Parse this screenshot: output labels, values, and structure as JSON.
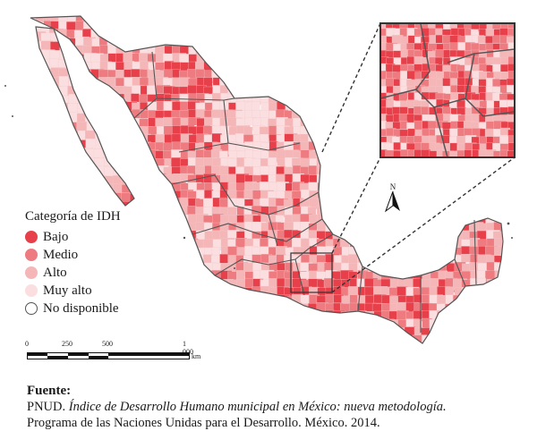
{
  "legend": {
    "title": "Categoría de IDH",
    "items": [
      {
        "label": "Bajo",
        "color": "#e8404a"
      },
      {
        "label": "Medio",
        "color": "#ee7b80"
      },
      {
        "label": "Alto",
        "color": "#f5b6b8"
      },
      {
        "label": "Muy alto",
        "color": "#fbdfe0"
      },
      {
        "label": "No disponible",
        "color": "#ffffff"
      }
    ]
  },
  "scale": {
    "ticks": [
      "0",
      "250",
      "500",
      "1 000"
    ],
    "unit": "km"
  },
  "north": {
    "label": "N"
  },
  "source": {
    "title": "Fuente:",
    "line1_prefix": "PNUD. ",
    "line1_italic": "Índice de Desarrollo Humano municipal en México: nueva metodología.",
    "line2": "Programa de las Naciones Unidas para el Desarrollo. México. 2014."
  },
  "colors": {
    "border": "#555555",
    "bajo": "#e8404a",
    "medio": "#ee7b80",
    "alto": "#f5b6b8",
    "muy_alto": "#fbdfe0"
  }
}
